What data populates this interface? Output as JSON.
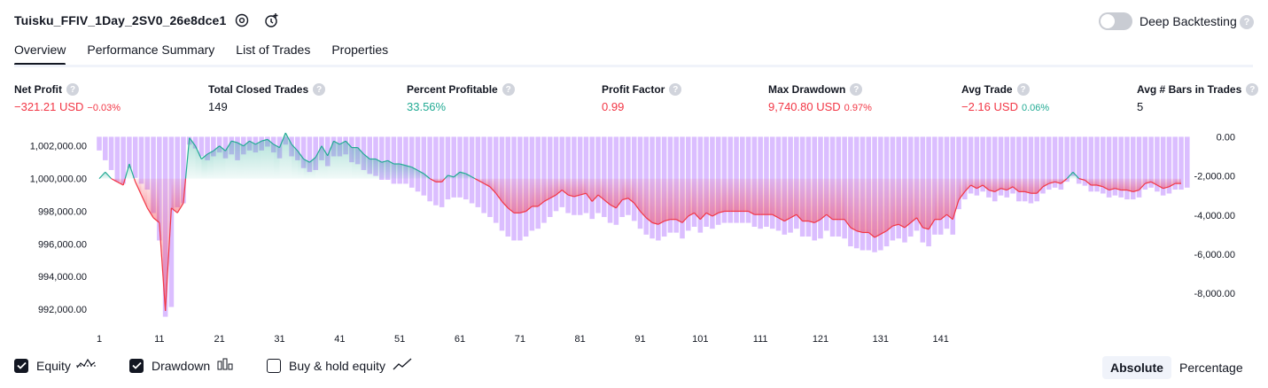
{
  "header": {
    "title": "Tuisku_FFIV_1Day_2SV0_26e8dce1",
    "deep_backtesting_label": "Deep Backtesting",
    "deep_backtesting_enabled": false,
    "help_glyph": "?"
  },
  "tabs": [
    {
      "label": "Overview",
      "active": true
    },
    {
      "label": "Performance Summary",
      "active": false
    },
    {
      "label": "List of Trades",
      "active": false
    },
    {
      "label": "Properties",
      "active": false
    }
  ],
  "metrics": [
    {
      "label": "Net Profit",
      "value": "−321.21 USD",
      "sub": "−0.03%",
      "tone": "neg"
    },
    {
      "label": "Total Closed Trades",
      "value": "149",
      "sub": "",
      "tone": "neu"
    },
    {
      "label": "Percent Profitable",
      "value": "33.56%",
      "sub": "",
      "tone": "pos"
    },
    {
      "label": "Profit Factor",
      "value": "0.99",
      "sub": "",
      "tone": "neg"
    },
    {
      "label": "Max Drawdown",
      "value": "9,740.80 USD",
      "sub": "0.97%",
      "tone": "neg"
    },
    {
      "label": "Avg Trade",
      "value": "−2.16 USD",
      "sub": "0.06%",
      "tone": "neg",
      "sub_tone": "pos"
    },
    {
      "label": "Avg # Bars in Trades",
      "value": "5",
      "sub": "",
      "tone": "neu"
    }
  ],
  "colors": {
    "equity_up": "#22ab94",
    "equity_down": "#f23645",
    "drawdown_bar": "#cfa8ff",
    "axis_text": "#131722"
  },
  "chart_data": {
    "type": "line",
    "x_ticks": [
      "1",
      "11",
      "21",
      "31",
      "41",
      "51",
      "61",
      "71",
      "81",
      "91",
      "101",
      "111",
      "121",
      "131",
      "141"
    ],
    "y_left_ticks": [
      "1,002,000.00",
      "1,000,000.00",
      "998,000.00",
      "996,000.00",
      "994,000.00",
      "992,000.00"
    ],
    "y_right_ticks": [
      "0.00",
      "-2,000.00",
      "-4,000.00",
      "-6,000.00",
      "-8,000.00"
    ],
    "y_left_range": [
      991300,
      1002800
    ],
    "y_right_range": [
      -9400,
      200
    ],
    "baseline": 1000000,
    "series": [
      {
        "name": "Equity",
        "values": [
          1000000,
          1000400,
          1000000,
          999800,
          999600,
          1000900,
          999800,
          999000,
          998200,
          997600,
          997300,
          991900,
          998200,
          997900,
          998500,
          1002500,
          1002000,
          1001200,
          1001500,
          1001700,
          1002000,
          1001700,
          1002300,
          1002200,
          1002000,
          1002300,
          1002100,
          1002300,
          1002400,
          1002100,
          1001900,
          1002800,
          1002100,
          1001700,
          1001200,
          1001000,
          1001300,
          1002000,
          1001400,
          1002300,
          1002100,
          1002300,
          1001900,
          1001900,
          1001500,
          1001200,
          1001200,
          1001000,
          1001100,
          1000900,
          1000900,
          1000800,
          1000700,
          1000500,
          1000300,
          1000000,
          999800,
          999800,
          1000200,
          1000100,
          1000400,
          1000300,
          1000100,
          999900,
          999700,
          999500,
          999100,
          998600,
          998200,
          997900,
          997900,
          998000,
          998300,
          998300,
          998600,
          998800,
          999000,
          999300,
          999000,
          998900,
          999000,
          999100,
          998600,
          999000,
          998700,
          998400,
          998200,
          998700,
          998800,
          998500,
          998000,
          997600,
          997300,
          997200,
          997400,
          997500,
          997500,
          997300,
          997700,
          997900,
          997500,
          997900,
          997700,
          997900,
          998000,
          998000,
          998000,
          998000,
          998000,
          997800,
          997800,
          997800,
          997800,
          997600,
          997400,
          997600,
          997800,
          997400,
          997400,
          997300,
          997500,
          997800,
          997500,
          997500,
          997500,
          997000,
          996800,
          996700,
          996700,
          996400,
          996600,
          996800,
          997100,
          997200,
          997000,
          997300,
          997600,
          997000,
          996900,
          997500,
          997500,
          997800,
          997500,
          998700,
          999200,
          999600,
          999400,
          999600,
          999300,
          999200,
          999400,
          999300,
          999500,
          999200,
          999200,
          999100,
          999100,
          999500,
          999700,
          999800,
          999700,
          1000000,
          1000400,
          1000000,
          999900,
          999600,
          999600,
          999500,
          999300,
          999400,
          999300,
          999300,
          999200,
          999300,
          999700,
          999800,
          999600,
          999400,
          999500,
          999700,
          999700
        ]
      },
      {
        "name": "Drawdown",
        "values": [
          -700,
          -1200,
          -1700,
          -2300,
          -2400,
          -1600,
          -2100,
          -2400,
          -2700,
          -3900,
          -5300,
          -9200,
          -8700,
          -3600,
          -3400,
          -400,
          -600,
          -1000,
          -1200,
          -1000,
          -800,
          -1100,
          -900,
          -1200,
          -900,
          -700,
          -800,
          -700,
          -500,
          -800,
          -1100,
          -400,
          -1000,
          -1200,
          -1600,
          -1800,
          -1700,
          -1200,
          -1500,
          -1000,
          -1000,
          -900,
          -1300,
          -1400,
          -1700,
          -1900,
          -2000,
          -2200,
          -2200,
          -2400,
          -2400,
          -2400,
          -2600,
          -2800,
          -3000,
          -3300,
          -3500,
          -3600,
          -3200,
          -3100,
          -3100,
          -3200,
          -3400,
          -3600,
          -3900,
          -4100,
          -4400,
          -4800,
          -5100,
          -5300,
          -5300,
          -5100,
          -4800,
          -4700,
          -4400,
          -4100,
          -3800,
          -3600,
          -3900,
          -4000,
          -4000,
          -3900,
          -4200,
          -3900,
          -4100,
          -4400,
          -4500,
          -4100,
          -4000,
          -4300,
          -4700,
          -5000,
          -5200,
          -5300,
          -5100,
          -4900,
          -4900,
          -5200,
          -4800,
          -4600,
          -4900,
          -4600,
          -4700,
          -4500,
          -4400,
          -4400,
          -4400,
          -4400,
          -4400,
          -4600,
          -4700,
          -4600,
          -4700,
          -4800,
          -5000,
          -4900,
          -4700,
          -5100,
          -5100,
          -5300,
          -5200,
          -4800,
          -5100,
          -5100,
          -5200,
          -5600,
          -5700,
          -5800,
          -5800,
          -5900,
          -5800,
          -5600,
          -5300,
          -5200,
          -5400,
          -5100,
          -4800,
          -5400,
          -5600,
          -5000,
          -5000,
          -4700,
          -5000,
          -3700,
          -3200,
          -2900,
          -3000,
          -2800,
          -3100,
          -3300,
          -3000,
          -3100,
          -2900,
          -3300,
          -3300,
          -3400,
          -3300,
          -2900,
          -2700,
          -2600,
          -2700,
          -2300,
          -2000,
          -2400,
          -2500,
          -2800,
          -2800,
          -2900,
          -3100,
          -3000,
          -3100,
          -3200,
          -3200,
          -3100,
          -2700,
          -2600,
          -2800,
          -3000,
          -2900,
          -2700,
          -2700,
          -2600
        ]
      }
    ],
    "grid": false
  },
  "legend": {
    "equity_label": "Equity",
    "drawdown_label": "Drawdown",
    "buyhold_label": "Buy & hold equity",
    "equity_checked": true,
    "drawdown_checked": true,
    "buyhold_checked": false
  },
  "scale_modes": {
    "absolute_label": "Absolute",
    "percentage_label": "Percentage",
    "selected": "absolute"
  }
}
